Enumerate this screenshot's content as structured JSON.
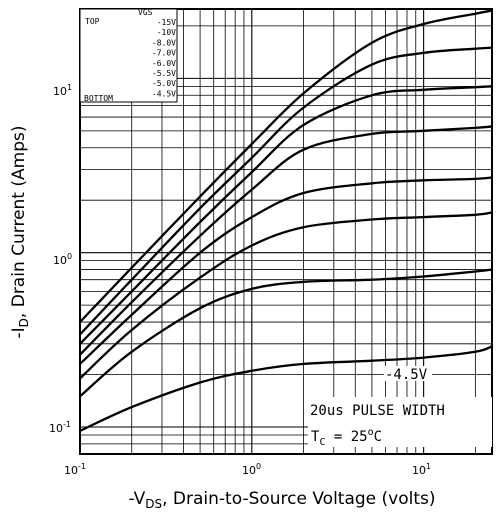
{
  "chart_data": {
    "type": "line",
    "title": "",
    "xlabel": "-V",
    "xlabel_sub": "DS",
    "xlabel_rest": ", Drain-to-Source Voltage (volts)",
    "ylabel": "-I",
    "ylabel_sub": "D",
    "ylabel_rest": ", Drain Current (Amps)",
    "xscale": "log",
    "yscale": "log",
    "xlim": [
      0.1,
      25
    ],
    "ylim": [
      0.07,
      25
    ],
    "xticks": [
      {
        "base": "10",
        "exp": "-1"
      },
      {
        "base": "10",
        "exp": "0"
      },
      {
        "base": "10",
        "exp": "1"
      }
    ],
    "yticks": [
      {
        "base": "10",
        "exp": "-1"
      },
      {
        "base": "10",
        "exp": "0"
      },
      {
        "base": "10",
        "exp": "1"
      }
    ],
    "legend": {
      "position": "top-left",
      "header": "VGS",
      "top_label": "TOP",
      "bottom_label": "BOTTOM",
      "entries": [
        "-15V",
        "-10V",
        "-8.0V",
        "-7.0V",
        "-6.0V",
        "-5.5V",
        "-5.0V",
        "-4.5V"
      ]
    },
    "annotations": {
      "curve_label": "-4.5V",
      "pulse": "20us PULSE WIDTH",
      "tc_prefix": "T",
      "tc_sub": "C",
      "tc_mid": " = 25",
      "tc_deg": "o",
      "tc_unit": "C"
    },
    "series": [
      {
        "name": "-15V",
        "x": [
          0.1,
          0.2,
          0.5,
          1,
          2,
          5,
          10,
          20,
          25
        ],
        "y": [
          0.4,
          0.82,
          2.1,
          4.2,
          8.2,
          16,
          20.5,
          23.5,
          24.5
        ]
      },
      {
        "name": "-10V",
        "x": [
          0.1,
          0.2,
          0.5,
          1,
          2,
          5,
          10,
          20,
          25
        ],
        "y": [
          0.34,
          0.7,
          1.8,
          3.5,
          6.8,
          12,
          14,
          14.8,
          15
        ]
      },
      {
        "name": "-8.0V",
        "x": [
          0.1,
          0.2,
          0.5,
          1,
          2,
          5,
          10,
          20,
          25
        ],
        "y": [
          0.3,
          0.6,
          1.5,
          2.9,
          5.4,
          8.0,
          8.6,
          8.9,
          9.0
        ]
      },
      {
        "name": "-7.0V",
        "x": [
          0.1,
          0.2,
          0.5,
          1,
          2,
          5,
          10,
          20,
          25
        ],
        "y": [
          0.26,
          0.52,
          1.25,
          2.3,
          3.9,
          4.8,
          5.0,
          5.2,
          5.3
        ]
      },
      {
        "name": "-6.0V",
        "x": [
          0.1,
          0.2,
          0.5,
          1,
          2,
          5,
          10,
          20,
          25
        ],
        "y": [
          0.23,
          0.44,
          1.0,
          1.6,
          2.2,
          2.5,
          2.6,
          2.65,
          2.7
        ]
      },
      {
        "name": "-5.5V",
        "x": [
          0.1,
          0.2,
          0.5,
          1,
          2,
          5,
          10,
          20,
          25
        ],
        "y": [
          0.19,
          0.36,
          0.72,
          1.1,
          1.4,
          1.55,
          1.6,
          1.65,
          1.7
        ]
      },
      {
        "name": "-5.0V",
        "x": [
          0.1,
          0.2,
          0.5,
          1,
          2,
          5,
          10,
          20,
          25
        ],
        "y": [
          0.15,
          0.27,
          0.48,
          0.62,
          0.68,
          0.7,
          0.73,
          0.78,
          0.8
        ]
      },
      {
        "name": "-4.5V",
        "x": [
          0.1,
          0.2,
          0.5,
          1,
          2,
          5,
          10,
          20,
          25
        ],
        "y": [
          0.095,
          0.13,
          0.18,
          0.21,
          0.23,
          0.24,
          0.25,
          0.27,
          0.29
        ]
      }
    ]
  }
}
